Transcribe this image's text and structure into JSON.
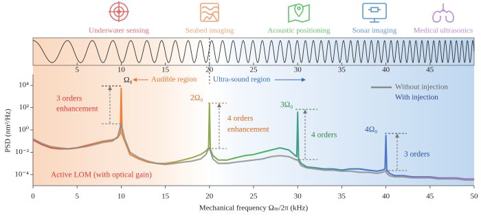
{
  "chart_data": {
    "type": "line",
    "log_y": true,
    "legend": "upper right",
    "x_label": "Mechanical frequency Ωₘ/2π (kHz)",
    "y_label": "PSD (nm²/Hz)",
    "x": [
      0,
      1,
      2,
      3,
      4,
      5,
      6,
      7,
      8,
      9,
      9.6,
      9.9,
      10,
      10.1,
      10.4,
      11,
      12,
      13,
      14,
      15,
      16,
      17,
      18,
      19,
      19.6,
      19.9,
      20,
      20.1,
      20.4,
      21,
      22,
      23,
      24,
      25,
      26,
      27,
      28,
      29,
      29.6,
      29.9,
      30,
      30.1,
      30.4,
      31,
      32,
      33,
      34,
      35,
      36,
      37,
      38,
      39,
      39.6,
      39.9,
      40,
      40.1,
      40.4,
      41,
      42,
      43,
      44,
      45,
      46,
      47,
      48,
      49,
      50
    ],
    "series": [
      {
        "name": "Without injection",
        "color": "#8a8a8a",
        "values": [
          0.16,
          0.063,
          0.032,
          0.025,
          0.02,
          0.025,
          0.032,
          0.05,
          0.079,
          0.1,
          0.25,
          2,
          3.2,
          1.6,
          0.16,
          0.01,
          0.0032,
          0.0016,
          0.001,
          0.0008,
          0.001,
          0.0013,
          0.0016,
          0.0025,
          0.0063,
          0.02,
          0.025,
          0.013,
          0.0025,
          0.001,
          0.001,
          0.0013,
          0.0016,
          0.002,
          0.0025,
          0.004,
          0.005,
          0.004,
          0.0025,
          0.002,
          0.002,
          0.0016,
          0.00063,
          0.0004,
          0.00032,
          0.00025,
          0.00025,
          0.0002,
          0.0002,
          0.00016,
          0.00016,
          0.00013,
          0.00016,
          0.0002,
          0.0002,
          0.00013,
          8e-05,
          6.3e-05,
          6.3e-05,
          5e-05,
          5e-05,
          5e-05,
          4e-05,
          4e-05,
          4e-05,
          3.2e-05,
          3.2e-05
        ]
      },
      {
        "name": "With injection",
        "color": [
          "#e53935",
          "#f08a2b",
          "#3cb84e",
          "#2e6fc4",
          "#a66ad0"
        ],
        "values": [
          0.13,
          0.05,
          0.025,
          0.02,
          0.02,
          0.025,
          0.04,
          0.063,
          0.1,
          0.13,
          0.2,
          0.5,
          5600,
          0.4,
          0.1,
          0.0063,
          0.0025,
          0.0013,
          0.001,
          0.001,
          0.0013,
          0.002,
          0.0032,
          0.0063,
          0.013,
          0.025,
          250,
          0.02,
          0.005,
          0.002,
          0.002,
          0.0032,
          0.005,
          0.0063,
          0.01,
          0.016,
          0.025,
          0.016,
          0.0063,
          0.004,
          40,
          0.0025,
          0.001,
          0.0005,
          0.0004,
          0.00032,
          0.00032,
          0.00025,
          0.00032,
          0.00032,
          0.00025,
          0.0002,
          0.00025,
          0.00032,
          0.32,
          0.00025,
          0.00013,
          8e-05,
          8e-05,
          6.3e-05,
          6.3e-05,
          6.3e-05,
          5e-05,
          5e-05,
          5e-05,
          4e-05,
          4e-05
        ]
      }
    ],
    "xlim": [
      0,
      50
    ],
    "xticks": [
      0,
      5,
      10,
      15,
      20,
      25,
      30,
      35,
      40,
      45,
      50
    ],
    "ylim": [
      1e-05,
      100000
    ],
    "yticks": [
      {
        "value": 10000,
        "label": "10⁴"
      },
      {
        "value": 100,
        "label": "10²"
      },
      {
        "value": 1,
        "label": "10⁰"
      },
      {
        "value": 0.01,
        "label": "10⁻²"
      },
      {
        "value": 0.0001,
        "label": "10⁻⁴"
      }
    ],
    "peak_labels": [
      "Ω₀",
      "2Ω₀",
      "3Ω₀",
      "4Ω₀"
    ],
    "enhancement_labels": [
      [
        "3 orders",
        "enhancement"
      ],
      [
        "4 orders",
        "enhancement"
      ],
      [
        "4 orders"
      ],
      [
        "3 orders"
      ]
    ],
    "gain_label": "Active LOM (with optical gain)"
  },
  "top_panel": {
    "xticks": [
      5,
      10,
      15,
      20,
      25,
      30,
      35,
      40,
      45
    ],
    "boundary": 20,
    "regions": [
      "Audible region",
      "Ultra-sound region"
    ]
  },
  "applications": [
    {
      "label": "Underwater sensing",
      "color": "#e07070"
    },
    {
      "label": "Seabed imaging",
      "color": "#f0a577"
    },
    {
      "label": "Acoustic positioning",
      "color": "#63c36a"
    },
    {
      "label": "Sonar imaging",
      "color": "#5d9ad6"
    },
    {
      "label": "Medical ultrasonics",
      "color": "#b88ad8"
    }
  ]
}
